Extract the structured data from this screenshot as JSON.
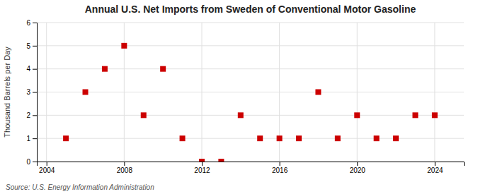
{
  "chart_data": {
    "type": "scatter",
    "title": "Annual U.S. Net Imports from Sweden of Conventional Motor Gasoline",
    "ylabel": "Thousand Barrels per Day",
    "annotations": [
      "Source: U.S. Energy Information Administration"
    ],
    "x": [
      2005,
      2006,
      2007,
      2008,
      2009,
      2010,
      2011,
      2012,
      2013,
      2014,
      2015,
      2016,
      2017,
      2018,
      2019,
      2020,
      2021,
      2022,
      2023,
      2024
    ],
    "values": [
      1,
      3,
      4,
      5,
      2,
      4,
      1,
      0,
      0,
      2,
      1,
      1,
      1,
      3,
      1,
      2,
      1,
      1,
      2,
      2
    ],
    "color": "#cc0000",
    "marker": "square",
    "xlim": [
      2003.5,
      2025.5
    ],
    "ylim": [
      0,
      6
    ],
    "xticks": [
      2004,
      2008,
      2012,
      2016,
      2020,
      2024
    ],
    "yticks": [
      0,
      1,
      2,
      3,
      4,
      5,
      6
    ],
    "grid": true
  }
}
